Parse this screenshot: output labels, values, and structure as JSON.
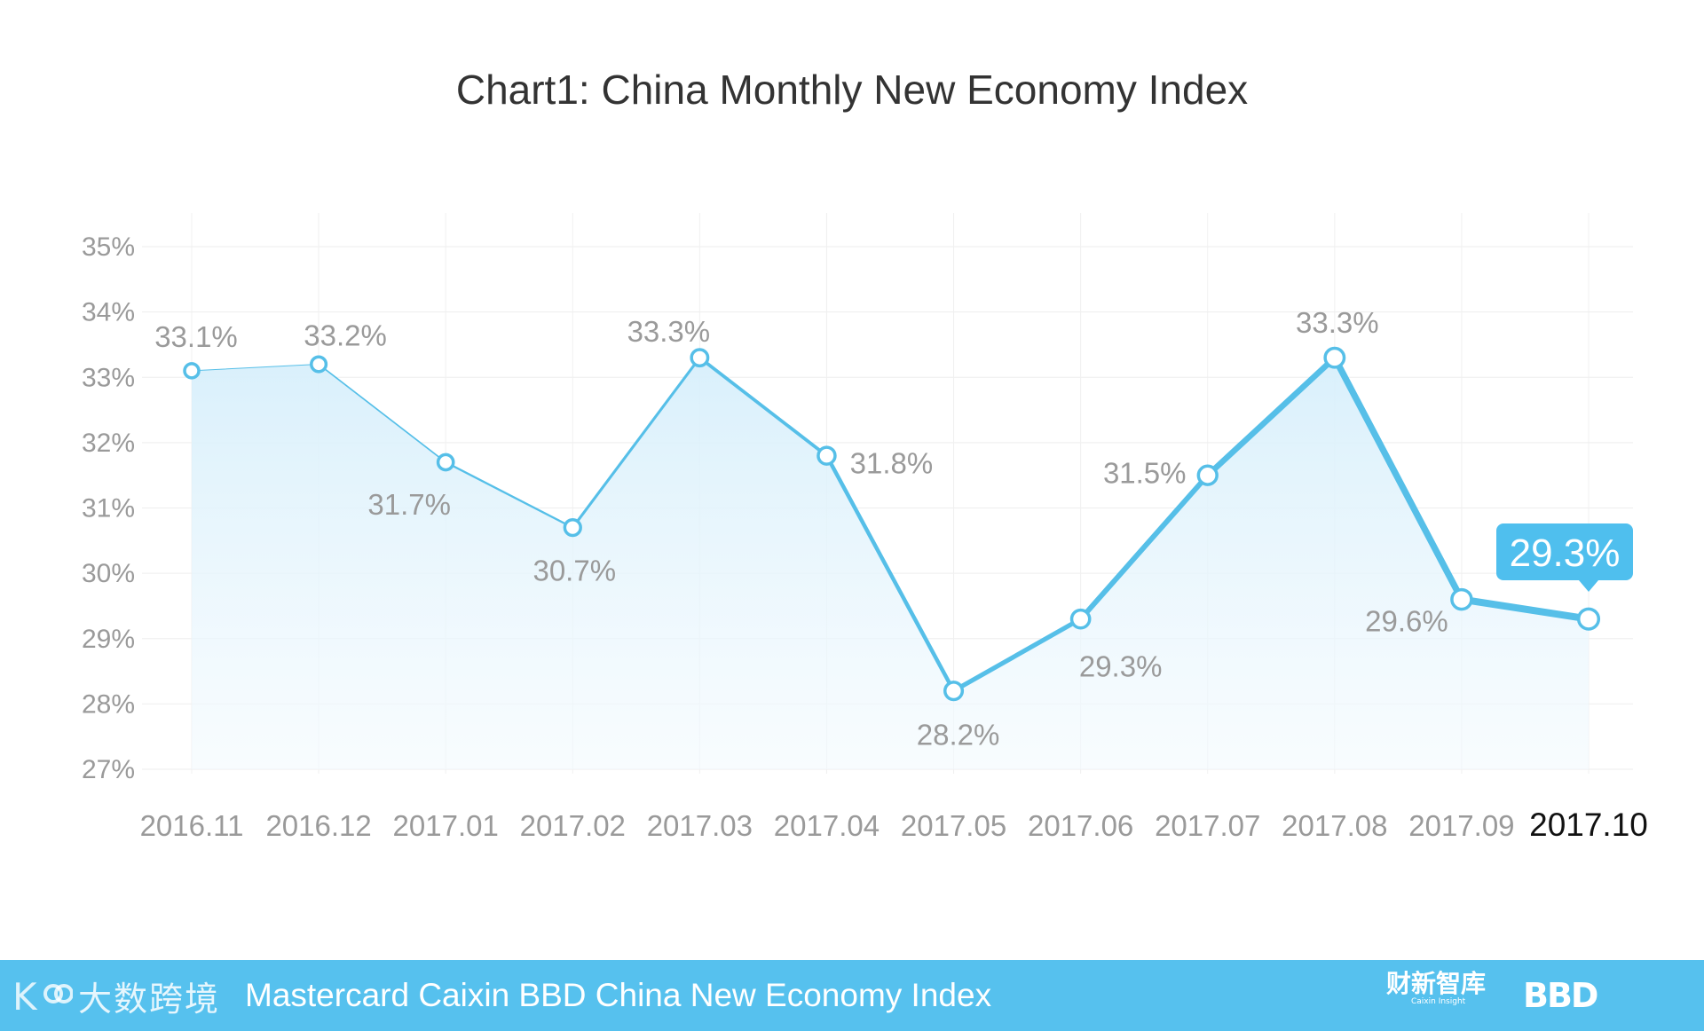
{
  "chart_data": {
    "type": "line",
    "title": "Chart1: China Monthly New Economy Index",
    "categories": [
      "2016.11",
      "2016.12",
      "2017.01",
      "2017.02",
      "2017.03",
      "2017.04",
      "2017.05",
      "2017.06",
      "2017.07",
      "2017.08",
      "2017.09",
      "2017.10"
    ],
    "values": [
      33.1,
      33.2,
      31.7,
      30.7,
      33.3,
      31.8,
      28.2,
      29.3,
      31.5,
      33.3,
      29.6,
      29.3
    ],
    "data_labels": [
      "33.1%",
      "33.2%",
      "31.7%",
      "30.7%",
      "33.3%",
      "31.8%",
      "28.2%",
      "29.3%",
      "31.5%",
      "33.3%",
      "29.6%",
      "29.3%"
    ],
    "ylim": [
      27,
      35
    ],
    "yticks": [
      "27%",
      "28%",
      "29%",
      "30%",
      "31%",
      "32%",
      "33%",
      "34%",
      "35%"
    ],
    "grid": true,
    "highlight_label": "29.3%",
    "highlight_category": "2017.10",
    "colors": {
      "line": "#56bfe8",
      "area": "#e3f4fc",
      "callout": "#4fbfee",
      "footer": "#56c1ee"
    }
  },
  "footer": {
    "brand_left": "大数跨境",
    "title": "Mastercard Caixin BBD China New Economy Index",
    "caixin_cn": "财新智库",
    "caixin_en": "Caixin Insight",
    "bbd": "BBD"
  }
}
